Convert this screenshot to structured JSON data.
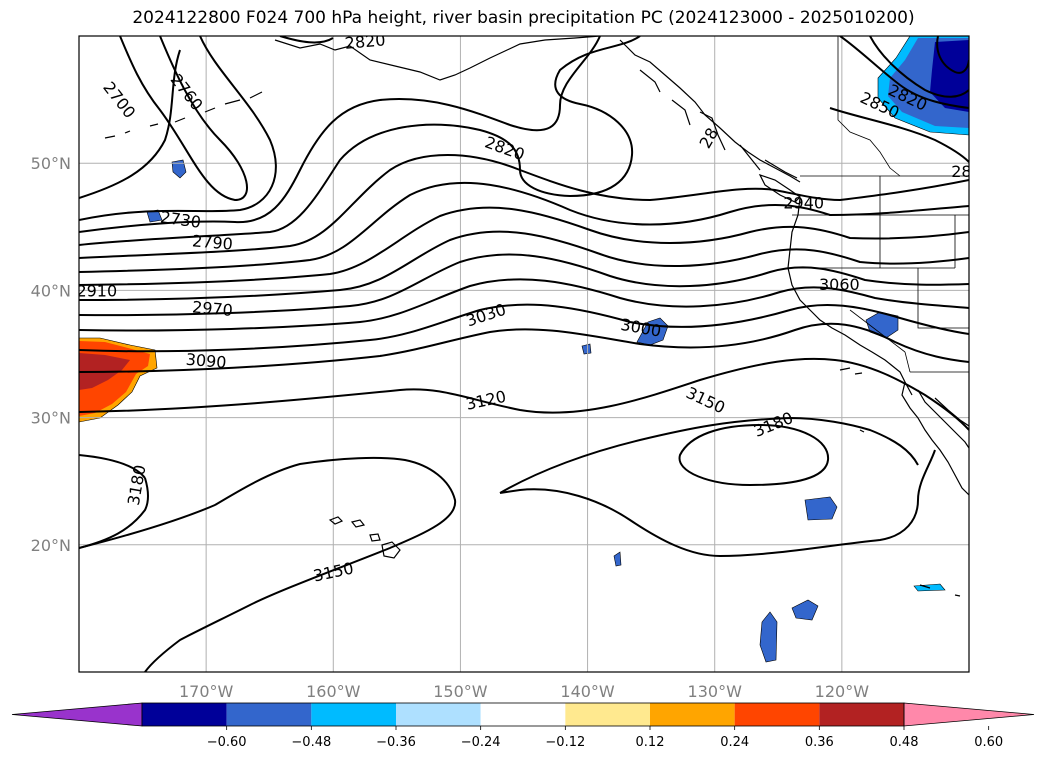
{
  "title": "2024122800 F024 700 hPa height, river basin precipitation PC (2024123000 - 2025010200)",
  "map": {
    "lon_range": [
      -180,
      -110
    ],
    "lat_range": [
      10,
      60
    ],
    "lat_ticks": [
      {
        "value": 50,
        "label": "50°N"
      },
      {
        "value": 40,
        "label": "40°N"
      },
      {
        "value": 30,
        "label": "30°N"
      },
      {
        "value": 20,
        "label": "20°N"
      }
    ],
    "lon_ticks": [
      {
        "value": -170,
        "label": "170°W"
      },
      {
        "value": -160,
        "label": "160°W"
      },
      {
        "value": -150,
        "label": "150°W"
      },
      {
        "value": -140,
        "label": "140°W"
      },
      {
        "value": -130,
        "label": "130°W"
      },
      {
        "value": -120,
        "label": "120°W"
      }
    ],
    "gridlines": true,
    "contour_labels": [
      {
        "text": "2820",
        "lon": -157.5,
        "lat": 59.6,
        "rot": -5
      },
      {
        "text": "2700",
        "lon": -176.8,
        "lat": 55,
        "rot": 52
      },
      {
        "text": "2760",
        "lon": -171.5,
        "lat": 55.6,
        "rot": 52
      },
      {
        "text": "2820",
        "lon": -146.5,
        "lat": 51.2,
        "rot": 20
      },
      {
        "text": "28",
        "lon": -130.5,
        "lat": 52,
        "rot": -60
      },
      {
        "text": "2850",
        "lon": -117,
        "lat": 54.6,
        "rot": 25
      },
      {
        "text": "2820",
        "lon": -114.8,
        "lat": 55.2,
        "rot": 25
      },
      {
        "text": "28",
        "lon": -110.6,
        "lat": 49.4,
        "rot": 0
      },
      {
        "text": "2730",
        "lon": -172,
        "lat": 45.6,
        "rot": 8
      },
      {
        "text": "2790",
        "lon": -169.5,
        "lat": 43.8,
        "rot": 5
      },
      {
        "text": "2940",
        "lon": -123,
        "lat": 46.9,
        "rot": 0
      },
      {
        "text": "2910",
        "lon": -178.6,
        "lat": 40,
        "rot": 0
      },
      {
        "text": "2970",
        "lon": -169.5,
        "lat": 38.6,
        "rot": 5
      },
      {
        "text": "3030",
        "lon": -148,
        "lat": 38.1,
        "rot": -18
      },
      {
        "text": "3000",
        "lon": -135.8,
        "lat": 37.1,
        "rot": 10
      },
      {
        "text": "3060",
        "lon": -120.2,
        "lat": 40.5,
        "rot": 0
      },
      {
        "text": "3090",
        "lon": -170,
        "lat": 34.5,
        "rot": 5
      },
      {
        "text": "3150",
        "lon": -130.7,
        "lat": 31.4,
        "rot": 25
      },
      {
        "text": "3120",
        "lon": -148,
        "lat": 31.4,
        "rot": -12
      },
      {
        "text": "3180",
        "lon": -125.4,
        "lat": 29.5,
        "rot": -22
      },
      {
        "text": "3180",
        "lon": -175.5,
        "lat": 24.7,
        "rot": -80
      },
      {
        "text": "3150",
        "lon": -160,
        "lat": 17.9,
        "rot": -12
      }
    ]
  },
  "colorbar": {
    "colors": [
      "#9933cc",
      "#000099",
      "#3366cc",
      "#00bbff",
      "#aee0ff",
      "#ffffff",
      "#ffe98f",
      "#ffa500",
      "#ff4500",
      "#b22222",
      "#ff88aa"
    ],
    "ticks": [
      "−0.60",
      "−0.48",
      "−0.36",
      "−0.24",
      "−0.12",
      "0.12",
      "0.24",
      "0.36",
      "0.48",
      "0.60"
    ]
  }
}
